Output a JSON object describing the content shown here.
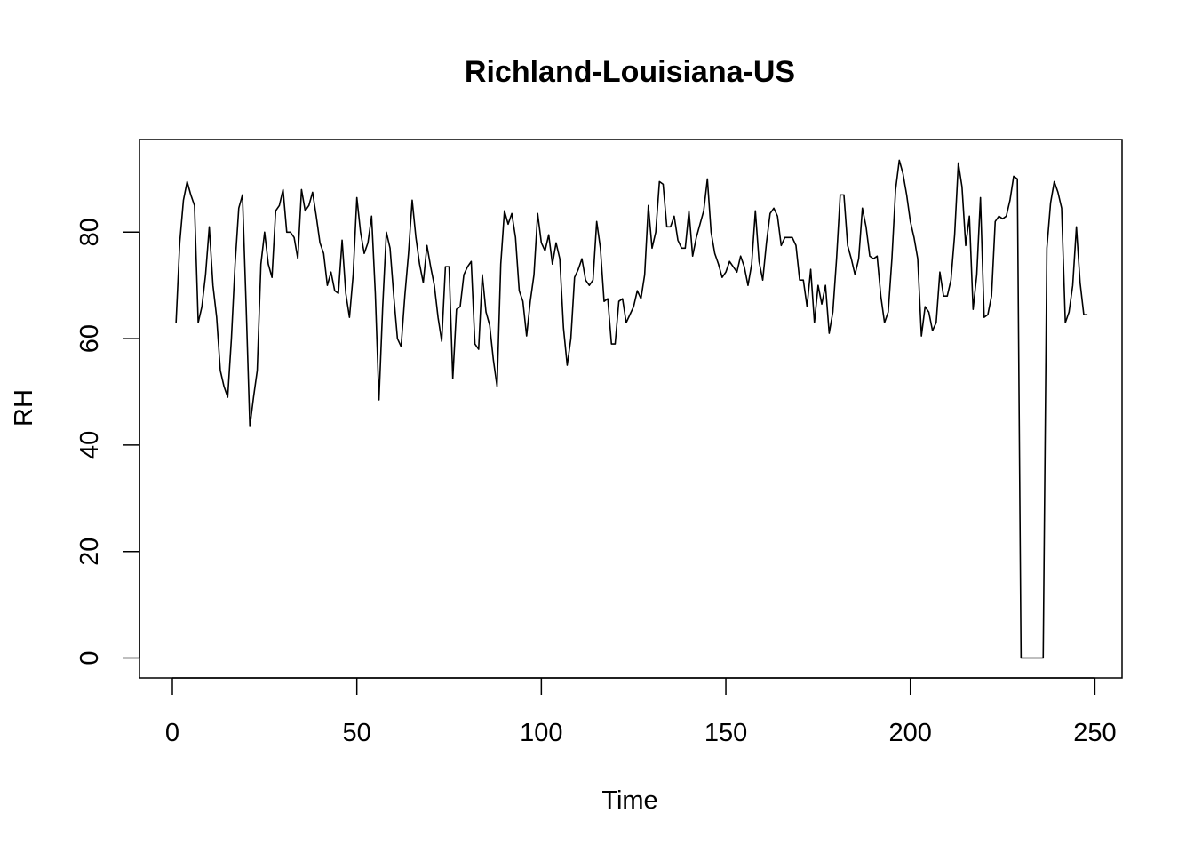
{
  "chart_data": {
    "type": "line",
    "title": "Richland-Louisiana-US",
    "xlabel": "Time",
    "ylabel": "RH",
    "xlim": [
      1,
      248
    ],
    "ylim": [
      0,
      94
    ],
    "x_ticks": [
      0,
      50,
      100,
      150,
      200,
      250
    ],
    "y_ticks": [
      0,
      20,
      40,
      60,
      80
    ],
    "grid": false,
    "legend": "none",
    "line_color": "#000000",
    "series": [
      {
        "x_start": 1,
        "values": [
          63,
          78,
          86,
          89.5,
          87,
          85,
          63,
          66,
          72,
          81,
          70,
          64,
          54,
          51,
          49,
          60,
          74,
          84.5,
          87,
          66,
          43.5,
          49,
          54,
          74,
          80,
          74,
          71.5,
          84,
          85,
          88,
          80,
          80,
          79,
          75,
          88,
          84,
          85,
          87.5,
          83,
          78,
          76,
          70,
          72.5,
          69,
          68.5,
          78.5,
          68.5,
          64,
          72,
          86.5,
          80,
          76,
          78,
          83,
          68.5,
          48.5,
          66,
          80,
          77,
          68,
          60,
          58.5,
          68,
          76,
          86,
          79,
          74,
          70.5,
          77.5,
          73.5,
          70,
          64,
          59.5,
          73.5,
          73.5,
          52.5,
          65.5,
          66,
          72,
          73.5,
          74.5,
          59,
          58,
          72,
          65,
          62.5,
          56,
          51,
          74,
          84,
          81.5,
          83.5,
          79,
          69,
          67,
          60.5,
          67,
          72,
          83.5,
          78,
          76.5,
          79.5,
          74,
          78,
          75,
          62,
          55,
          60,
          71.5,
          73,
          75,
          71,
          70,
          71,
          82,
          77,
          67,
          67.5,
          59,
          59,
          67,
          67.5,
          63,
          64.5,
          66,
          69,
          67.5,
          72,
          85,
          77,
          80,
          89.5,
          89,
          81,
          81,
          83,
          78.5,
          77,
          77,
          84,
          75.5,
          79,
          81.5,
          84,
          90,
          80,
          76,
          74,
          71.5,
          72.5,
          74.5,
          73.5,
          72.5,
          75.5,
          73.5,
          70,
          74,
          84,
          74.5,
          71,
          78,
          83.5,
          84.5,
          83,
          77.5,
          79,
          79,
          79,
          77.5,
          71,
          71,
          66,
          73,
          63,
          70,
          66.5,
          70,
          61,
          65,
          75,
          87,
          87,
          77.5,
          75,
          72,
          75,
          84.5,
          81,
          75.5,
          75,
          75.5,
          68,
          63,
          65,
          75,
          88,
          93.5,
          91,
          87,
          82,
          79,
          75,
          60.5,
          66,
          65,
          61.5,
          63,
          72.5,
          68,
          68,
          71,
          79.5,
          93,
          88.5,
          77.5,
          83,
          65.5,
          72,
          86.5,
          64,
          64.5,
          68,
          82,
          83,
          82.5,
          83,
          86,
          90.5,
          90,
          0,
          0,
          0,
          0,
          0,
          0,
          0,
          77,
          85.5,
          89.5,
          87.5,
          84.5,
          63,
          65,
          70,
          81,
          70.5,
          64.5,
          64.5
        ]
      }
    ]
  }
}
